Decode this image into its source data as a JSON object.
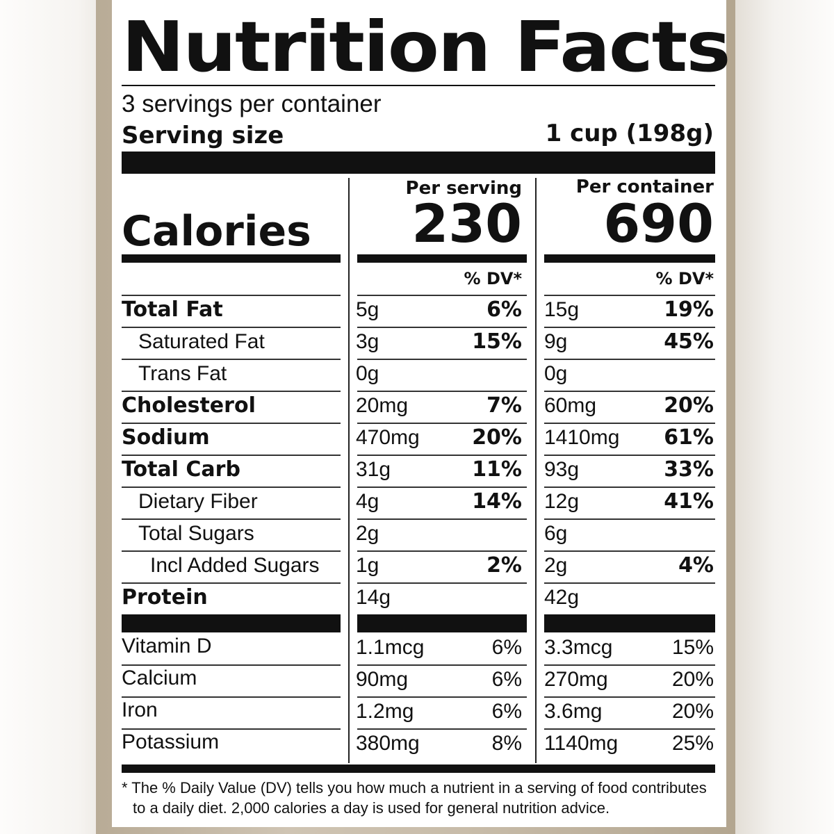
{
  "title": "Nutrition Facts",
  "servings_per_container": "3 servings per container",
  "serving_size": {
    "label": "Serving size",
    "value": "1 cup (198g)"
  },
  "calories": {
    "label": "Calories",
    "per_serving_header": "Per serving",
    "per_container_header": "Per container",
    "per_serving": "230",
    "per_container": "690"
  },
  "dv_header": "% DV*",
  "nutrients": [
    {
      "name": "Total Fat",
      "bold": true,
      "indent": 0,
      "serving_amount": "5g",
      "serving_dv": "6%",
      "container_amount": "15g",
      "container_dv": "19%"
    },
    {
      "name": "Saturated Fat",
      "bold": false,
      "indent": 1,
      "serving_amount": "3g",
      "serving_dv": "15%",
      "container_amount": "9g",
      "container_dv": "45%"
    },
    {
      "name": "Trans Fat",
      "bold": false,
      "indent": 1,
      "serving_amount": "0g",
      "serving_dv": "",
      "container_amount": "0g",
      "container_dv": ""
    },
    {
      "name": "Cholesterol",
      "bold": true,
      "indent": 0,
      "serving_amount": "20mg",
      "serving_dv": "7%",
      "container_amount": "60mg",
      "container_dv": "20%"
    },
    {
      "name": "Sodium",
      "bold": true,
      "indent": 0,
      "serving_amount": "470mg",
      "serving_dv": "20%",
      "container_amount": "1410mg",
      "container_dv": "61%"
    },
    {
      "name": "Total Carb",
      "bold": true,
      "indent": 0,
      "serving_amount": "31g",
      "serving_dv": "11%",
      "container_amount": "93g",
      "container_dv": "33%"
    },
    {
      "name": "Dietary Fiber",
      "bold": false,
      "indent": 1,
      "serving_amount": "4g",
      "serving_dv": "14%",
      "container_amount": "12g",
      "container_dv": "41%"
    },
    {
      "name": "Total Sugars",
      "bold": false,
      "indent": 1,
      "serving_amount": "2g",
      "serving_dv": "",
      "container_amount": "6g",
      "container_dv": ""
    },
    {
      "name": "Incl Added Sugars",
      "bold": false,
      "indent": 2,
      "serving_amount": "1g",
      "serving_dv": "2%",
      "container_amount": "2g",
      "container_dv": "4%"
    },
    {
      "name": "Protein",
      "bold": true,
      "indent": 0,
      "serving_amount": "14g",
      "serving_dv": "",
      "container_amount": "42g",
      "container_dv": ""
    }
  ],
  "vitamins": [
    {
      "name": "Vitamin D",
      "serving_amount": "1.1mcg",
      "serving_dv": "6%",
      "container_amount": "3.3mcg",
      "container_dv": "15%"
    },
    {
      "name": "Calcium",
      "serving_amount": "90mg",
      "serving_dv": "6%",
      "container_amount": "270mg",
      "container_dv": "20%"
    },
    {
      "name": "Iron",
      "serving_amount": "1.2mg",
      "serving_dv": "6%",
      "container_amount": "3.6mg",
      "container_dv": "20%"
    },
    {
      "name": "Potassium",
      "serving_amount": "380mg",
      "serving_dv": "8%",
      "container_amount": "1140mg",
      "container_dv": "25%"
    }
  ],
  "footnote": [
    "* The % Daily Value (DV) tells you how much a nutrient in a serving of food contributes",
    "to a daily diet. 2,000 calories a day is used for general nutrition advice."
  ]
}
